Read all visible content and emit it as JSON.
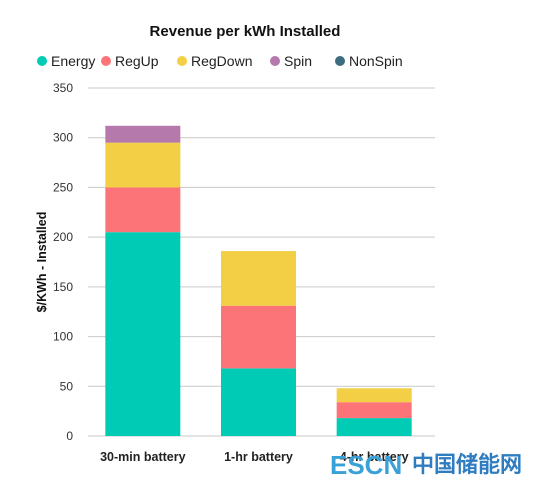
{
  "chart_data": {
    "type": "bar",
    "stacked": true,
    "title": "Revenue per kWh Installed",
    "xlabel": "",
    "ylabel": "$/KWh - Installed",
    "ylim": [
      0,
      350
    ],
    "yticks": [
      0,
      50,
      100,
      150,
      200,
      250,
      300,
      350
    ],
    "grid": true,
    "legend_position": "top",
    "categories": [
      "30-min battery",
      "1-hr battery",
      "4-hr battery"
    ],
    "series": [
      {
        "name": "Energy",
        "color": "#00cbb4",
        "values": [
          205,
          68,
          18
        ]
      },
      {
        "name": "RegUp",
        "color": "#fd7478",
        "values": [
          45,
          63,
          16
        ]
      },
      {
        "name": "RegDown",
        "color": "#f2cf45",
        "values": [
          45,
          55,
          14
        ]
      },
      {
        "name": "Spin",
        "color": "#b57aab",
        "values": [
          17,
          0,
          0
        ]
      },
      {
        "name": "NonSpin",
        "color": "#3b6c80",
        "values": [
          0,
          0,
          0
        ]
      }
    ]
  },
  "watermark": {
    "logo_text": "ESCN",
    "site_name": "中国储能网"
  }
}
